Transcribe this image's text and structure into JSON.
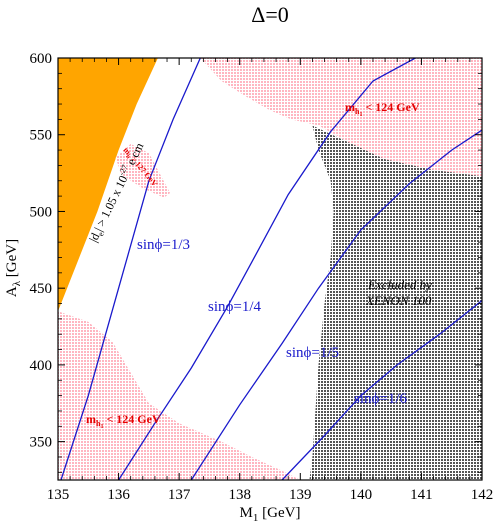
{
  "chart_data": {
    "type": "line",
    "title": "Δ=0",
    "xlabel": "M",
    "xlabel_sub": "1",
    "xlabel_unit": " [GeV]",
    "ylabel": "A",
    "ylabel_sub": "λ",
    "ylabel_unit": " [GeV]",
    "xlim": [
      135,
      142
    ],
    "ylim": [
      325,
      600
    ],
    "xticks": [
      "135",
      "136",
      "137",
      "138",
      "139",
      "140",
      "141",
      "142"
    ],
    "yticks": [
      "350",
      "400",
      "450",
      "500",
      "550",
      "600"
    ],
    "colors": {
      "orange": "#ffa500",
      "pink": "#ffb6c1",
      "gray": "#808080",
      "blue": "#1a1acc",
      "red": "#e60000"
    },
    "regions": [
      {
        "name": "edm-excluded",
        "color": "#ffa500",
        "boundary": [
          [
            135,
            600
          ],
          [
            136.65,
            600
          ],
          [
            136.3,
            570
          ],
          [
            136.0,
            540
          ],
          [
            135.65,
            500
          ],
          [
            135.3,
            465
          ],
          [
            135.0,
            435
          ]
        ]
      },
      {
        "name": "mh-upper-left",
        "color": "#ffb6c1",
        "boundary": [
          [
            135,
            435
          ],
          [
            135.0,
            325
          ],
          [
            139.0,
            325
          ],
          [
            138.7,
            331
          ],
          [
            138.2,
            340
          ],
          [
            137.7,
            350
          ],
          [
            137.0,
            362
          ],
          [
            136.5,
            375
          ],
          [
            136.2,
            395
          ],
          [
            135.9,
            415
          ],
          [
            135.5,
            428
          ]
        ]
      },
      {
        "name": "mh-top-right",
        "color": "#ffb6c1",
        "boundary": [
          [
            137.35,
            600
          ],
          [
            142,
            600
          ],
          [
            142,
            523
          ],
          [
            141.2,
            527
          ],
          [
            140.4,
            534
          ],
          [
            139.8,
            545
          ],
          [
            139.3,
            556
          ],
          [
            138.85,
            560
          ],
          [
            138.5,
            566
          ],
          [
            138.1,
            575
          ],
          [
            137.7,
            585
          ]
        ]
      },
      {
        "name": "mh-127-island",
        "color": "#ffb6c1",
        "boundary": [
          [
            135.95,
            535
          ],
          [
            136.2,
            544
          ],
          [
            136.5,
            538
          ],
          [
            136.85,
            512
          ],
          [
            136.75,
            509
          ],
          [
            136.4,
            515
          ],
          [
            136.05,
            524
          ]
        ]
      },
      {
        "name": "xenon-excluded",
        "color": "#808080",
        "boundary": [
          [
            139.2,
            556
          ],
          [
            139.3,
            540
          ],
          [
            139.5,
            520
          ],
          [
            139.55,
            500
          ],
          [
            139.5,
            470
          ],
          [
            139.4,
            440
          ],
          [
            139.3,
            400
          ],
          [
            139.25,
            370
          ],
          [
            139.2,
            340
          ],
          [
            139.15,
            325
          ],
          [
            142,
            325
          ],
          [
            142,
            523
          ],
          [
            141.2,
            527
          ],
          [
            140.4,
            534
          ],
          [
            139.8,
            545
          ]
        ]
      }
    ],
    "series": [
      {
        "name": "sinφ=1/3",
        "x": [
          135.05,
          135.5,
          136.0,
          136.5,
          136.9,
          137.35
        ],
        "y": [
          325,
          380,
          450,
          520,
          560,
          600
        ]
      },
      {
        "name": "sinφ=1/4",
        "x": [
          136.0,
          136.6,
          137.2,
          137.8,
          138.2,
          138.8,
          139.5,
          140.2,
          140.9
        ],
        "y": [
          325,
          362,
          398,
          438,
          467,
          511,
          552,
          585,
          600
        ]
      },
      {
        "name": "sinφ=1/5",
        "x": [
          137.2,
          138.0,
          138.7,
          139.3,
          140.0,
          140.8,
          141.5,
          142.0
        ],
        "y": [
          325,
          374,
          414,
          450,
          488,
          518,
          540,
          553
        ]
      },
      {
        "name": "sinφ=1/6",
        "x": [
          138.7,
          139.4,
          140.0,
          140.6,
          141.3,
          142.0
        ],
        "y": [
          325,
          354,
          380,
          400,
          420,
          442
        ]
      }
    ],
    "annotations": [
      {
        "id": "sin13",
        "text": "sinϕ=1/3"
      },
      {
        "id": "sin14",
        "text": "sinϕ=1/4"
      },
      {
        "id": "sin15",
        "text": "sinϕ=1/5"
      },
      {
        "id": "sin16",
        "text": "sinϕ=1/6"
      },
      {
        "id": "xenon1",
        "text": "Excluded by"
      },
      {
        "id": "xenon2",
        "text": "XENON 100"
      },
      {
        "id": "edm",
        "text": "|d"
      },
      {
        "id": "edm_sub",
        "text": "e"
      },
      {
        "id": "edm_rest",
        "text": "| > 1.05 x 10"
      },
      {
        "id": "edm_exp",
        "text": "-27"
      },
      {
        "id": "edm_unit",
        "text": " e cm"
      },
      {
        "id": "mh_top_a",
        "text": "m"
      },
      {
        "id": "mh_top_sub",
        "text": "h"
      },
      {
        "id": "mh_top_sub2",
        "text": "1"
      },
      {
        "id": "mh_top_rest",
        "text": " < 124 GeV"
      },
      {
        "id": "mh_bot_a",
        "text": "m"
      },
      {
        "id": "mh_bot_sub",
        "text": "h"
      },
      {
        "id": "mh_bot_sub2",
        "text": "1"
      },
      {
        "id": "mh_bot_rest",
        "text": " < 124 GeV"
      },
      {
        "id": "mh127_a",
        "text": "m"
      },
      {
        "id": "mh127_sub",
        "text": "h"
      },
      {
        "id": "mh127_rest",
        "text": " > 127 GeV"
      }
    ]
  }
}
